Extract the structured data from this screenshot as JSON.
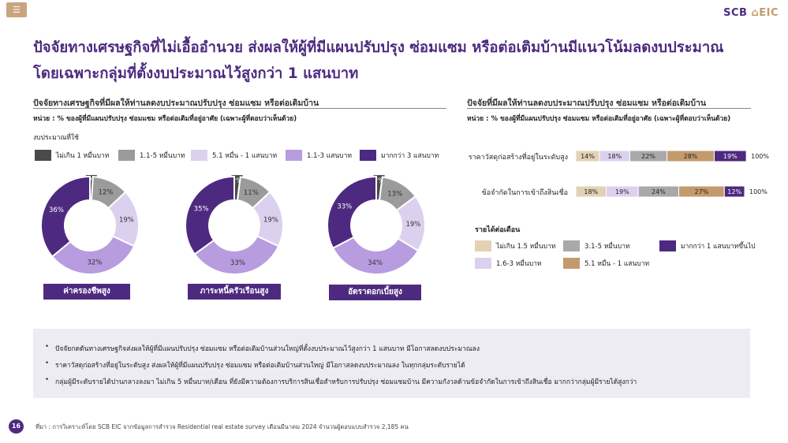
{
  "header": {
    "menu_icon": "menu-icon",
    "logo_scb": "SCB",
    "logo_eic": "EIC"
  },
  "title": {
    "line1": "ปัจจัยทางเศรษฐกิจที่ไม่เอื้ออำนวย ส่งผลให้ผู้ที่มีแผนปรับปรุง ซ่อมแซม หรือต่อเติมบ้านมีแนวโน้มลดงบประมาณ",
    "line2": "โดยเฉพาะกลุ่มที่ตั้งงบประมาณไว้สูงกว่า 1 แสนบาท"
  },
  "left": {
    "heading": "ปัจจัยทางเศรษฐกิจที่มีผลให้ท่านลดงบประมาณปรับปรุง ซ่อมแซม หรือต่อเติมบ้าน",
    "unit": "หน่วย : % ของผู้ที่มีแผนปรับปรุง ซ่อมแซม หรือต่อเติมที่อยู่อาศัย (เฉพาะผู้ที่ตอบว่าเห็นด้วย)",
    "legend_title": "งบประมาณที่ใช้",
    "legend": [
      {
        "label": "ไม่เกิน 1 หมื่นบาท",
        "color": "#4a4a4a"
      },
      {
        "label": "1.1-5 หมื่นบาท",
        "color": "#9b9b9b"
      },
      {
        "label": "5.1 หมื่น - 1 แสนบาท",
        "color": "#dcd0ef"
      },
      {
        "label": "1.1-3 แสนบาท",
        "color": "#b79ce0"
      },
      {
        "label": "มากกว่า 3 แสนบาท",
        "color": "#4d2a80"
      }
    ]
  },
  "chart_data": [
    {
      "type": "pie",
      "title": "ค่าครองชีพสูง",
      "categories": [
        "ไม่เกิน 1 หมื่นบาท",
        "1.1-5 หมื่นบาท",
        "5.1 หมื่น - 1 แสนบาท",
        "1.1-3 แสนบาท",
        "มากกว่า 3 แสนบาท"
      ],
      "values": [
        1,
        12,
        19,
        32,
        36
      ],
      "labels": [
        "1%",
        "12%",
        "19%",
        "32%",
        "36%"
      ]
    },
    {
      "type": "pie",
      "title": "ภาระหนี้ครัวเรือนสูง",
      "categories": [
        "ไม่เกิน 1 หมื่นบาท",
        "1.1-5 หมื่นบาท",
        "5.1 หมื่น - 1 แสนบาท",
        "1.1-3 แสนบาท",
        "มากกว่า 3 แสนบาท"
      ],
      "values": [
        2,
        11,
        19,
        33,
        35
      ],
      "labels": [
        "2%",
        "11%",
        "19%",
        "33%",
        "35%"
      ]
    },
    {
      "type": "pie",
      "title": "อัตราดอกเบี้ยสูง",
      "categories": [
        "ไม่เกิน 1 หมื่นบาท",
        "1.1-5 หมื่นบาท",
        "5.1 หมื่น - 1 แสนบาท",
        "1.1-3 แสนบาท",
        "มากกว่า 3 แสนบาท"
      ],
      "values": [
        2,
        13,
        19,
        34,
        33
      ],
      "labels": [
        "2%",
        "13%",
        "19%",
        "34%",
        "33%"
      ]
    },
    {
      "type": "bar",
      "stacked": true,
      "orientation": "horizontal",
      "title": "ปัจจัยที่มีผลให้ท่านลดงบประมาณปรับปรุง ซ่อมแซม หรือต่อเติมบ้าน",
      "categories": [
        "ราคาวัสดุก่อสร้างที่อยู่ในระดับสูง",
        "ข้อจำกัดในการเข้าถึงสินเชื่อ"
      ],
      "series": [
        {
          "name": "ไม่เกิน 1.5 หมื่นบาท",
          "color": "#e2d1b5",
          "values": [
            14,
            18
          ],
          "labels": [
            "14%",
            "18%"
          ]
        },
        {
          "name": "1.6-3 หมื่นบาท",
          "color": "#dcd0ef",
          "values": [
            18,
            19
          ],
          "labels": [
            "18%",
            "19%"
          ]
        },
        {
          "name": "3.1-5 หมื่นบาท",
          "color": "#a9a9a9",
          "values": [
            22,
            24
          ],
          "labels": [
            "22%",
            "24%"
          ]
        },
        {
          "name": "5.1 หมื่น - 1 แสนบาท",
          "color": "#c49a6c",
          "values": [
            28,
            27
          ],
          "labels": [
            "28%",
            "27%"
          ]
        },
        {
          "name": "มากกว่า 1 แสนบาทขึ้นไป",
          "color": "#4d2a80",
          "values": [
            19,
            12
          ],
          "labels": [
            "19%",
            "12%"
          ]
        }
      ],
      "totals": [
        "100%",
        "100%"
      ]
    }
  ],
  "right": {
    "heading": "ปัจจัยที่มีผลให้ท่านลดงบประมาณปรับปรุง ซ่อมแซม หรือต่อเติมบ้าน",
    "unit": "หน่วย : % ของผู้ที่มีแผนปรับปรุง ซ่อมแซม หรือต่อเติมที่อยู่อาศัย (เฉพาะผู้ที่ตอบว่าเห็นด้วย)",
    "income_title": "รายได้ต่อเดือน",
    "legend": [
      {
        "label": "ไม่เกิน 1.5 หมื่นบาท",
        "color": "#e2d1b5"
      },
      {
        "label": "3.1-5 หมื่นบาท",
        "color": "#a9a9a9"
      },
      {
        "label": "มากกว่า 1 แสนบาทขึ้นไป",
        "color": "#4d2a80"
      },
      {
        "label": "1.6-3 หมื่นบาท",
        "color": "#dcd0ef"
      },
      {
        "label": "5.1 หมื่น - 1 แสนบาท",
        "color": "#c49a6c"
      }
    ]
  },
  "notes": [
    "ปัจจัยกดดันทางเศรษฐกิจส่งผลให้ผู้ที่มีแผนปรับปรุง ซ่อมแซม หรือต่อเติมบ้านส่วนใหญ่ที่ตั้งงบประมาณไว้สูงกว่า 1 แสนบาท มีโอกาสลดงบประมาณลง",
    "ราคาวัสดุก่อสร้างที่อยู่ในระดับสูง ส่งผลให้ผู้ที่มีแผนปรับปรุง ซ่อมแซม หรือต่อเติมบ้านส่วนใหญ่ มีโอกาสลดงบประมาณลง ในทุกกลุ่มระดับรายได้",
    "กลุ่มผู้มีระดับรายได้ปานกลางลงมา ไม่เกิน 5 หมื่นบาท/เดือน ที่ยังมีความต้องการบริการสินเชื่อสำหรับการปรับปรุง ซ่อมแซมบ้าน มีความกังวลด้านข้อจำกัดในการเข้าถึงสินเชื่อ มากกว่ากลุ่มผู้มีรายได้สูงกว่า"
  ],
  "footer": {
    "page_number": "16",
    "source": "ที่มา : การวิเคราะห์โดย SCB EIC จากข้อมูลการสำรวจ Residential real estate survey เดือนมีนาคม 2024 จำนวนผู้ตอบแบบสำรวจ 2,185 คน"
  }
}
